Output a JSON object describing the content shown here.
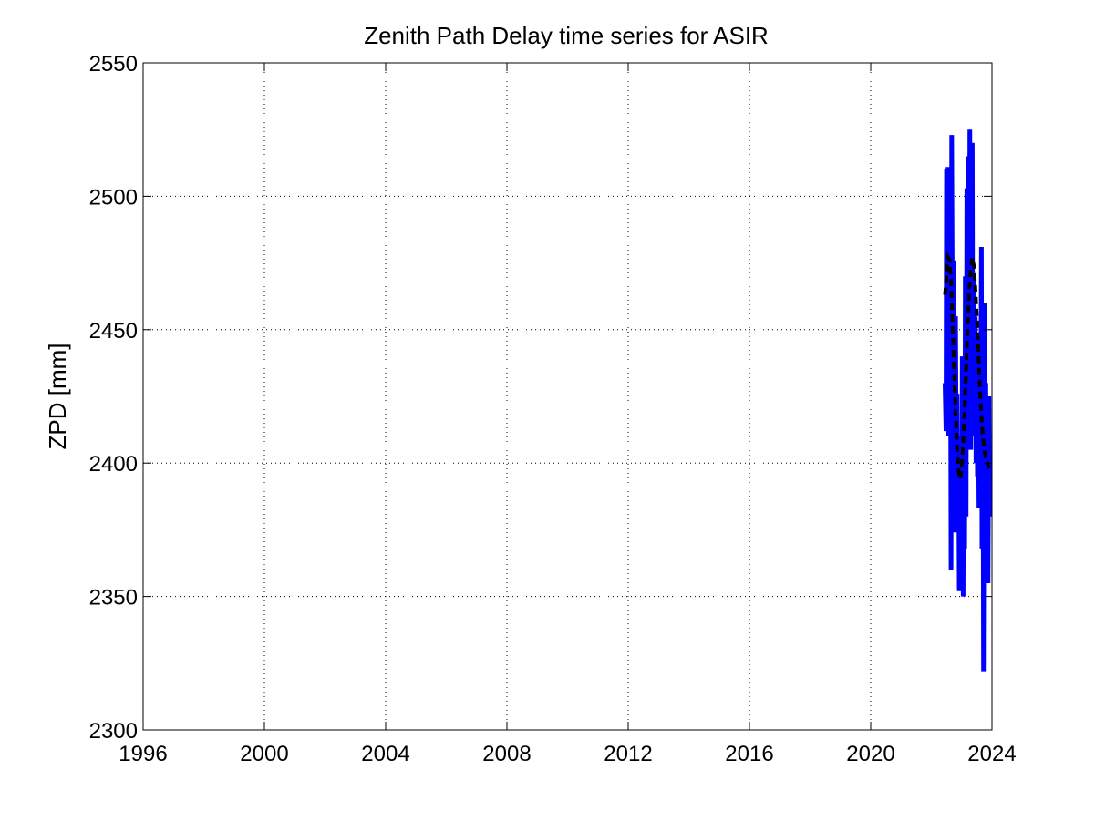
{
  "chart_data": {
    "type": "line",
    "title": "Zenith Path Delay time series for ASIR",
    "xlabel": "",
    "ylabel": "ZPD [mm]",
    "xlim": [
      1996,
      2024
    ],
    "ylim": [
      2300,
      2550
    ],
    "xticks": [
      "1996",
      "2000",
      "2004",
      "2008",
      "2012",
      "2016",
      "2020",
      "2024"
    ],
    "yticks": [
      "2300",
      "2350",
      "2400",
      "2450",
      "2500",
      "2550"
    ],
    "grid": true,
    "series": [
      {
        "style": "solid",
        "color": "#0000ff",
        "x": [
          2022.45,
          2022.48,
          2022.5,
          2022.52,
          2022.55,
          2022.57,
          2022.6,
          2022.62,
          2022.65,
          2022.67,
          2022.7,
          2022.72,
          2022.75,
          2022.77,
          2022.8,
          2022.82,
          2022.85,
          2022.87,
          2022.9,
          2022.92,
          2022.95,
          2022.97,
          2023.0,
          2023.02,
          2023.05,
          2023.07,
          2023.1,
          2023.12,
          2023.15,
          2023.17,
          2023.2,
          2023.22,
          2023.25,
          2023.27,
          2023.3,
          2023.32,
          2023.35,
          2023.37,
          2023.4,
          2023.42,
          2023.45,
          2023.47,
          2023.5,
          2023.52,
          2023.55,
          2023.57,
          2023.6,
          2023.62,
          2023.65,
          2023.67,
          2023.7,
          2023.72,
          2023.75,
          2023.77,
          2023.8,
          2023.82,
          2023.85,
          2023.87,
          2023.9,
          2023.92
        ],
        "y": [
          2430,
          2412,
          2510,
          2420,
          2511,
          2410,
          2475,
          2505,
          2360,
          2523,
          2440,
          2380,
          2476,
          2374,
          2455,
          2410,
          2426,
          2390,
          2400,
          2352,
          2410,
          2385,
          2352,
          2440,
          2350,
          2440,
          2368,
          2470,
          2380,
          2503,
          2420,
          2515,
          2418,
          2525,
          2405,
          2480,
          2520,
          2410,
          2470,
          2420,
          2455,
          2400,
          2440,
          2395,
          2420,
          2383,
          2447,
          2395,
          2481,
          2368,
          2435,
          2322,
          2460,
          2366,
          2430,
          2372,
          2410,
          2355,
          2425,
          2380
        ]
      },
      {
        "style": "dashed",
        "color": "#000000",
        "x": [
          2022.45,
          2022.5,
          2022.55,
          2022.6,
          2022.65,
          2022.7,
          2022.75,
          2022.8,
          2022.85,
          2022.9,
          2022.95,
          2023.0,
          2023.05,
          2023.1,
          2023.15,
          2023.2,
          2023.25,
          2023.3,
          2023.35,
          2023.4,
          2023.45,
          2023.5,
          2023.55,
          2023.6,
          2023.65,
          2023.7,
          2023.75,
          2023.8,
          2023.85,
          2023.9
        ],
        "y": [
          2463,
          2470,
          2477,
          2476,
          2468,
          2452,
          2435,
          2418,
          2405,
          2397,
          2394,
          2398,
          2408,
          2420,
          2436,
          2452,
          2465,
          2473,
          2477,
          2474,
          2466,
          2455,
          2442,
          2428,
          2418,
          2410,
          2405,
          2402,
          2400,
          2398
        ]
      }
    ]
  }
}
